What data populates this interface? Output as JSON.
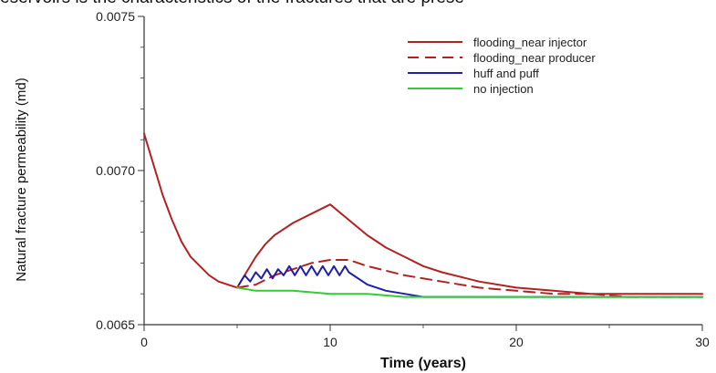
{
  "caption_fragment": "eservoirs is the characteristics of the fractures that are prese",
  "chart_data": {
    "type": "line",
    "title": "",
    "xlabel": "Time (years)",
    "ylabel": "Natural fracture permeability (md)",
    "xlim": [
      0,
      30
    ],
    "ylim": [
      0.0065,
      0.0075
    ],
    "xticks": [
      0,
      10,
      20,
      30
    ],
    "yticks": [
      0.0065,
      0.007,
      0.0075
    ],
    "xtick_labels": [
      "0",
      "10",
      "20",
      "30"
    ],
    "ytick_labels": [
      "0.0065",
      "0.0070",
      "0.0075"
    ],
    "grid": false,
    "legend_position": "top-right",
    "series": [
      {
        "name": "flooding_near injector",
        "color": "#b22222",
        "dash": "solid",
        "x": [
          0,
          0.1,
          0.5,
          1,
          1.5,
          2,
          2.5,
          3,
          3.5,
          4,
          4.5,
          5,
          5.5,
          6,
          6.5,
          7,
          8,
          9,
          10,
          11,
          12,
          13,
          14,
          15,
          16,
          18,
          20,
          22,
          24,
          26,
          28,
          30
        ],
        "y": [
          0.00712,
          0.0071,
          0.00702,
          0.00692,
          0.00684,
          0.00677,
          0.00672,
          0.00669,
          0.00666,
          0.00664,
          0.00663,
          0.00662,
          0.00667,
          0.00672,
          0.00676,
          0.00679,
          0.00683,
          0.00686,
          0.00689,
          0.00684,
          0.00679,
          0.00675,
          0.00672,
          0.00669,
          0.00667,
          0.00664,
          0.00662,
          0.00661,
          0.0066,
          0.0066,
          0.0066,
          0.0066
        ]
      },
      {
        "name": "flooding_near producer",
        "color": "#b22222",
        "dash": "dashed",
        "x": [
          5,
          6,
          7,
          8,
          9,
          10,
          11,
          12,
          14,
          16,
          18,
          20,
          22,
          24,
          26,
          28,
          30
        ],
        "y": [
          0.00662,
          0.00663,
          0.00666,
          0.00668,
          0.0067,
          0.00671,
          0.00671,
          0.00669,
          0.00666,
          0.00664,
          0.00662,
          0.00661,
          0.0066,
          0.0066,
          0.00659,
          0.00659,
          0.00659
        ]
      },
      {
        "name": "huff and puff",
        "color": "#1f1fa8",
        "dash": "solid",
        "x": [
          5.1,
          5.4,
          5.7,
          6.0,
          6.3,
          6.6,
          6.9,
          7.2,
          7.5,
          7.8,
          8.1,
          8.4,
          8.7,
          9.0,
          9.3,
          9.6,
          9.9,
          10.2,
          10.5,
          10.8,
          11,
          12,
          13,
          14,
          15,
          16,
          18,
          20,
          22,
          24,
          26,
          28,
          30
        ],
        "y": [
          0.00663,
          0.00666,
          0.00664,
          0.00667,
          0.00665,
          0.00668,
          0.00665,
          0.00668,
          0.00666,
          0.00669,
          0.00666,
          0.00669,
          0.00666,
          0.00669,
          0.00666,
          0.00669,
          0.00666,
          0.00669,
          0.00666,
          0.00669,
          0.00667,
          0.00663,
          0.00661,
          0.0066,
          0.00659,
          0.00659,
          0.00659,
          0.00659,
          0.00659,
          0.00659,
          0.00659,
          0.00659,
          0.00659
        ]
      },
      {
        "name": "no injection",
        "color": "#33cc33",
        "dash": "solid",
        "x": [
          5,
          6,
          8,
          10,
          12,
          14,
          16,
          18,
          20,
          25,
          30
        ],
        "y": [
          0.00662,
          0.00661,
          0.00661,
          0.0066,
          0.0066,
          0.00659,
          0.00659,
          0.00659,
          0.00659,
          0.00659,
          0.00659
        ]
      }
    ]
  }
}
